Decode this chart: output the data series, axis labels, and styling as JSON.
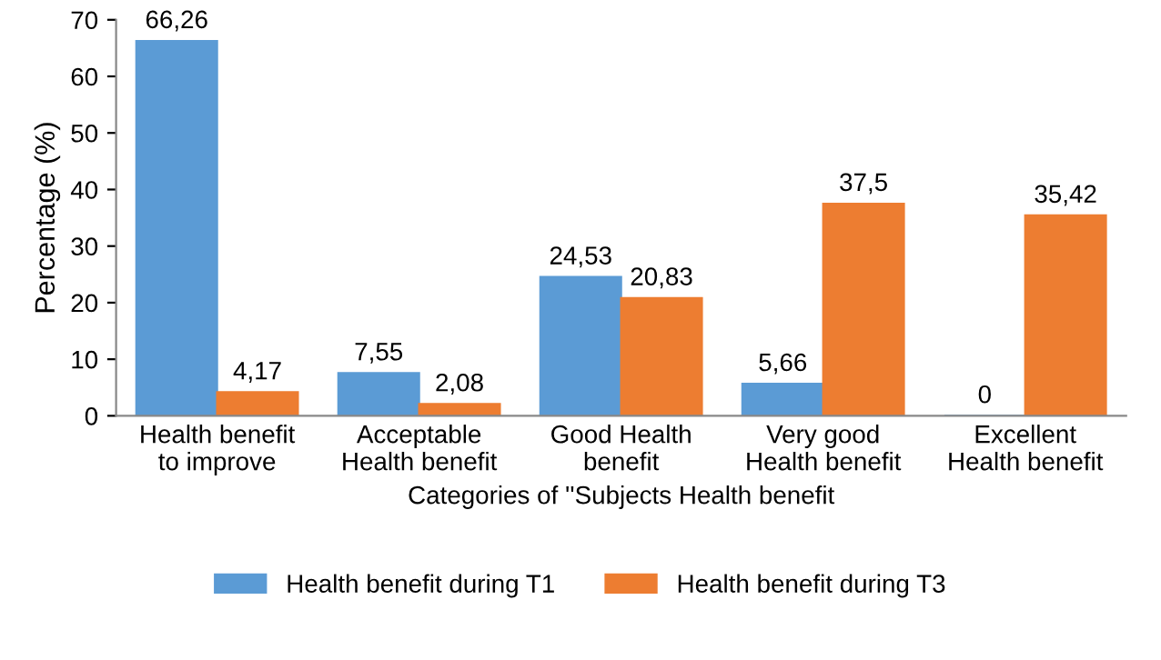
{
  "chart_data": {
    "type": "bar",
    "xlabel": "Categories of ''Subjects Health benefit",
    "ylabel": "Percentage (%)",
    "categories": [
      "Health benefit\nto improve",
      "Acceptable\nHealth benefit",
      "Good Health\nbenefit",
      "Very good\nHealth benefit",
      "Excellent\nHealth benefit"
    ],
    "series": [
      {
        "name": "Health benefit during T1",
        "color": "#5b9bd5",
        "values": [
          66.26,
          7.55,
          24.53,
          5.66,
          0
        ],
        "value_labels": [
          "66,26",
          "7,55",
          "24,53",
          "5,66",
          "0"
        ]
      },
      {
        "name": "Health benefit during T3",
        "color": "#ed7d31",
        "values": [
          4.17,
          2.08,
          20.83,
          37.5,
          35.42
        ],
        "value_labels": [
          "4,17",
          "2,08",
          "20,83",
          "37,5",
          "35,42"
        ]
      }
    ],
    "ylim": [
      0,
      70
    ],
    "yticks": [
      0,
      10,
      20,
      30,
      40,
      50,
      60,
      70
    ],
    "grid": false,
    "legend": "bottom"
  }
}
